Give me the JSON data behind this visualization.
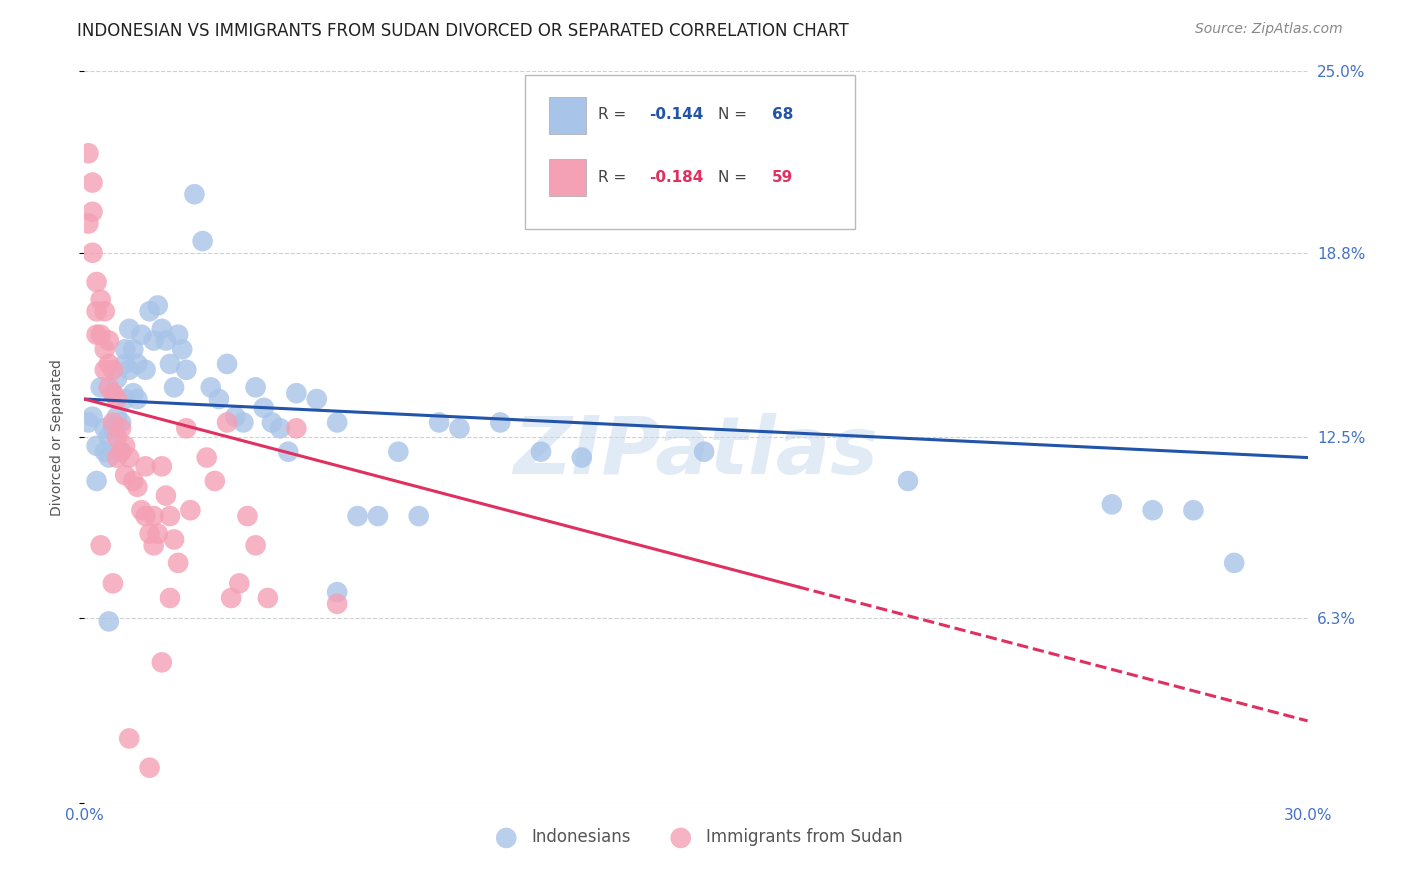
{
  "title": "INDONESIAN VS IMMIGRANTS FROM SUDAN DIVORCED OR SEPARATED CORRELATION CHART",
  "source": "Source: ZipAtlas.com",
  "ylabel": "Divorced or Separated",
  "xlim": [
    0.0,
    0.3
  ],
  "ylim": [
    0.0,
    0.25
  ],
  "xtick_vals": [
    0.0,
    0.05,
    0.1,
    0.15,
    0.2,
    0.25,
    0.3
  ],
  "xtick_labels": [
    "0.0%",
    "",
    "",
    "",
    "",
    "",
    "30.0%"
  ],
  "ytick_vals": [
    0.0,
    0.063,
    0.125,
    0.188,
    0.25
  ],
  "ytick_right_labels": [
    "",
    "6.3%",
    "12.5%",
    "18.8%",
    "25.0%"
  ],
  "legend_labels": [
    "Indonesians",
    "Immigrants from Sudan"
  ],
  "blue_R": "-0.144",
  "blue_N": "68",
  "pink_R": "-0.184",
  "pink_N": "59",
  "blue_color": "#a8c4e8",
  "pink_color": "#f4a0b5",
  "blue_line_color": "#2255aa",
  "pink_line_color": "#e03060",
  "watermark": "ZIPatlas",
  "blue_points": [
    [
      0.001,
      0.13
    ],
    [
      0.002,
      0.132
    ],
    [
      0.003,
      0.122
    ],
    [
      0.003,
      0.11
    ],
    [
      0.004,
      0.142
    ],
    [
      0.005,
      0.128
    ],
    [
      0.005,
      0.12
    ],
    [
      0.006,
      0.125
    ],
    [
      0.006,
      0.118
    ],
    [
      0.007,
      0.14
    ],
    [
      0.007,
      0.128
    ],
    [
      0.008,
      0.145
    ],
    [
      0.008,
      0.132
    ],
    [
      0.009,
      0.13
    ],
    [
      0.009,
      0.12
    ],
    [
      0.01,
      0.155
    ],
    [
      0.01,
      0.15
    ],
    [
      0.01,
      0.138
    ],
    [
      0.011,
      0.162
    ],
    [
      0.011,
      0.148
    ],
    [
      0.012,
      0.155
    ],
    [
      0.012,
      0.14
    ],
    [
      0.013,
      0.15
    ],
    [
      0.013,
      0.138
    ],
    [
      0.014,
      0.16
    ],
    [
      0.015,
      0.148
    ],
    [
      0.016,
      0.168
    ],
    [
      0.017,
      0.158
    ],
    [
      0.018,
      0.17
    ],
    [
      0.019,
      0.162
    ],
    [
      0.02,
      0.158
    ],
    [
      0.021,
      0.15
    ],
    [
      0.022,
      0.142
    ],
    [
      0.023,
      0.16
    ],
    [
      0.024,
      0.155
    ],
    [
      0.025,
      0.148
    ],
    [
      0.027,
      0.208
    ],
    [
      0.029,
      0.192
    ],
    [
      0.031,
      0.142
    ],
    [
      0.033,
      0.138
    ],
    [
      0.035,
      0.15
    ],
    [
      0.037,
      0.132
    ],
    [
      0.039,
      0.13
    ],
    [
      0.042,
      0.142
    ],
    [
      0.044,
      0.135
    ],
    [
      0.046,
      0.13
    ],
    [
      0.048,
      0.128
    ],
    [
      0.05,
      0.12
    ],
    [
      0.052,
      0.14
    ],
    [
      0.057,
      0.138
    ],
    [
      0.062,
      0.13
    ],
    [
      0.067,
      0.098
    ],
    [
      0.072,
      0.098
    ],
    [
      0.077,
      0.12
    ],
    [
      0.082,
      0.098
    ],
    [
      0.087,
      0.13
    ],
    [
      0.092,
      0.128
    ],
    [
      0.102,
      0.13
    ],
    [
      0.112,
      0.12
    ],
    [
      0.122,
      0.118
    ],
    [
      0.152,
      0.12
    ],
    [
      0.202,
      0.11
    ],
    [
      0.252,
      0.102
    ],
    [
      0.262,
      0.1
    ],
    [
      0.272,
      0.1
    ],
    [
      0.282,
      0.082
    ],
    [
      0.006,
      0.062
    ],
    [
      0.062,
      0.072
    ]
  ],
  "pink_points": [
    [
      0.001,
      0.222
    ],
    [
      0.001,
      0.198
    ],
    [
      0.002,
      0.212
    ],
    [
      0.002,
      0.202
    ],
    [
      0.002,
      0.188
    ],
    [
      0.003,
      0.178
    ],
    [
      0.003,
      0.168
    ],
    [
      0.003,
      0.16
    ],
    [
      0.004,
      0.172
    ],
    [
      0.004,
      0.16
    ],
    [
      0.005,
      0.168
    ],
    [
      0.005,
      0.155
    ],
    [
      0.005,
      0.148
    ],
    [
      0.006,
      0.158
    ],
    [
      0.006,
      0.15
    ],
    [
      0.006,
      0.142
    ],
    [
      0.007,
      0.148
    ],
    [
      0.007,
      0.14
    ],
    [
      0.007,
      0.13
    ],
    [
      0.008,
      0.138
    ],
    [
      0.008,
      0.125
    ],
    [
      0.008,
      0.118
    ],
    [
      0.009,
      0.128
    ],
    [
      0.009,
      0.12
    ],
    [
      0.01,
      0.122
    ],
    [
      0.01,
      0.112
    ],
    [
      0.011,
      0.118
    ],
    [
      0.012,
      0.11
    ],
    [
      0.013,
      0.108
    ],
    [
      0.014,
      0.1
    ],
    [
      0.015,
      0.115
    ],
    [
      0.015,
      0.098
    ],
    [
      0.016,
      0.092
    ],
    [
      0.017,
      0.098
    ],
    [
      0.017,
      0.088
    ],
    [
      0.018,
      0.092
    ],
    [
      0.019,
      0.115
    ],
    [
      0.02,
      0.105
    ],
    [
      0.021,
      0.098
    ],
    [
      0.022,
      0.09
    ],
    [
      0.023,
      0.082
    ],
    [
      0.025,
      0.128
    ],
    [
      0.03,
      0.118
    ],
    [
      0.032,
      0.11
    ],
    [
      0.035,
      0.13
    ],
    [
      0.038,
      0.075
    ],
    [
      0.04,
      0.098
    ],
    [
      0.042,
      0.088
    ],
    [
      0.045,
      0.07
    ],
    [
      0.052,
      0.128
    ],
    [
      0.011,
      0.022
    ],
    [
      0.016,
      0.012
    ],
    [
      0.021,
      0.07
    ],
    [
      0.036,
      0.07
    ],
    [
      0.062,
      0.068
    ],
    [
      0.019,
      0.048
    ],
    [
      0.004,
      0.088
    ],
    [
      0.007,
      0.075
    ],
    [
      0.026,
      0.1
    ]
  ],
  "blue_trendline": {
    "x_start": 0.0,
    "y_start": 0.138,
    "x_end": 0.3,
    "y_end": 0.118
  },
  "pink_trendline_solid_end": 0.175,
  "pink_trendline": {
    "x_start": 0.0,
    "y_start": 0.138,
    "x_end": 0.3,
    "y_end": 0.028
  },
  "grid_color": "#d0d0d0",
  "bg_color": "#ffffff",
  "title_fontsize": 12,
  "axis_label_fontsize": 10,
  "tick_fontsize": 11,
  "source_fontsize": 10
}
